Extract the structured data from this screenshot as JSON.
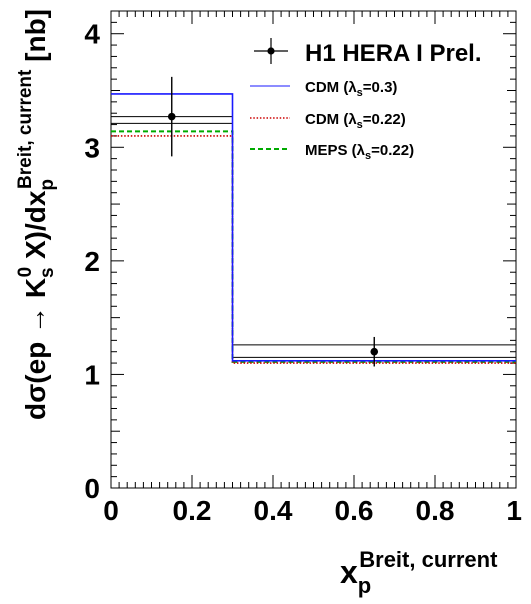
{
  "chart_data": {
    "type": "line",
    "title": "",
    "xlabel": {
      "main": "x",
      "sub": "p",
      "sup": "Breit, current"
    },
    "ylabel": {
      "part1": "dσ(ep → K",
      "k_sub": "s",
      "k_sup": "0",
      "part2": " X)/dx",
      "x_sub": "p",
      "x_sup": "Breit, current",
      "unit": " [nb]"
    },
    "xlim": [
      0,
      1
    ],
    "ylim": [
      0,
      4.2
    ],
    "x_ticks": [
      "0",
      "0.2",
      "0.4",
      "0.6",
      "0.8",
      "1"
    ],
    "y_ticks": [
      "0",
      "1",
      "2",
      "3",
      "4"
    ],
    "grid": false,
    "legend_position": "top-right",
    "bin_edges": [
      0,
      0.3,
      1
    ],
    "data_points": {
      "name": "H1 HERA I Prel.",
      "x": [
        0.15,
        0.65
      ],
      "y": [
        3.27,
        1.2
      ],
      "stat_err": [
        0.35,
        0.13
      ],
      "syst_band": [
        [
          3.21,
          3.27
        ],
        [
          1.15,
          1.26
        ]
      ],
      "color": "#000000"
    },
    "series": [
      {
        "name_main": "CDM (λ",
        "name_sub": "s",
        "name_tail": "=0.3)",
        "values": [
          3.47,
          1.12
        ],
        "color": "#1a1aff",
        "style": "solid"
      },
      {
        "name_main": "CDM (λ",
        "name_sub": "s",
        "name_tail": "=0.22)",
        "values": [
          3.1,
          1.1
        ],
        "color": "#cc0000",
        "style": "dotted"
      },
      {
        "name_main": "MEPS (λ",
        "name_sub": "s",
        "name_tail": "=0.22)",
        "values": [
          3.14,
          1.11
        ],
        "color": "#00aa00",
        "style": "dashed"
      }
    ]
  }
}
